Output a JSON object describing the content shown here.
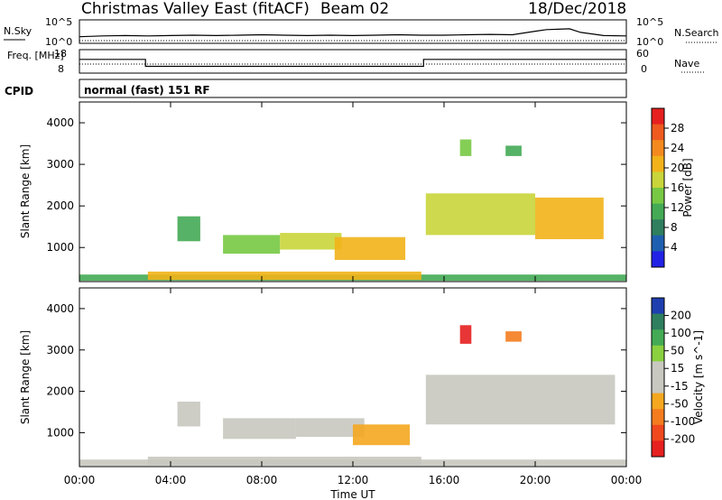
{
  "header": {
    "title": "Christmas Valley East (fitACF)",
    "beam": "Beam 02",
    "date": "18/Dec/2018"
  },
  "cpid_label": "CPID",
  "cpid_value": "normal (fast) 151 RF",
  "x_axis": {
    "label": "Time UT",
    "ticks": [
      "00:00",
      "04:00",
      "08:00",
      "12:00",
      "16:00",
      "20:00",
      "00:00"
    ],
    "range_hours": [
      0,
      24
    ]
  },
  "colors": {
    "power": [
      "#2222e6",
      "#1f5fb0",
      "#2f7f5f",
      "#44aa55",
      "#77c944",
      "#c9d53a",
      "#f2b21a",
      "#f48a1f",
      "#ee5a1f",
      "#e61f1f"
    ],
    "velocity": [
      "#e61f1f",
      "#f0481f",
      "#f47c1f",
      "#f4a71f",
      "#c8c8c0",
      "#c8c8c0",
      "#8ad040",
      "#44aa55",
      "#2f7f5f",
      "#1f3fb0"
    ]
  },
  "chart_data": [
    {
      "type": "line",
      "name": "noise_panel",
      "left_label": "N.Sky",
      "right_label": "N.Search",
      "left_ticks": [
        "10^5",
        "10^0"
      ],
      "right_ticks": [
        "10^5",
        "10^0"
      ],
      "series": [
        {
          "name": "N.Sky",
          "x": [
            0,
            1,
            2,
            3,
            4,
            5,
            6,
            7,
            8,
            9,
            10,
            11,
            12,
            13,
            14,
            15,
            16,
            17,
            18,
            19,
            20,
            20.5,
            21,
            21.5,
            22,
            23,
            24
          ],
          "y": [
            1.2,
            1.4,
            1.5,
            1.4,
            1.5,
            1.6,
            1.5,
            1.6,
            1.7,
            1.6,
            1.5,
            1.6,
            1.5,
            1.6,
            1.7,
            1.6,
            1.6,
            1.7,
            1.8,
            1.7,
            2.6,
            3.0,
            3.1,
            3.2,
            2.3,
            1.5,
            1.4
          ]
        }
      ]
    },
    {
      "type": "line",
      "name": "frequency_panel",
      "left_label": "Freq. [MHz]",
      "right_label": "Nave",
      "left_ticks": [
        "18",
        "8"
      ],
      "right_ticks": [
        "60",
        "0"
      ],
      "series": [
        {
          "name": "Freq.",
          "x": [
            0,
            2.9,
            2.9,
            15.1,
            15.1,
            24
          ],
          "y": [
            14,
            14,
            10.5,
            10.5,
            14,
            14
          ]
        }
      ]
    },
    {
      "type": "heatmap",
      "name": "power_panel",
      "ylabel": "Slant Range [km]",
      "yticks": [
        1000,
        2000,
        3000,
        4000
      ],
      "ylim": [
        180,
        4500
      ],
      "colorbar_label": "Power [dB]",
      "colorbar_ticks": [
        4,
        8,
        12,
        16,
        20,
        24,
        28
      ],
      "colorbar_range": [
        0,
        30
      ],
      "regions": [
        {
          "t0": 0.0,
          "t1": 24.0,
          "r0": 200,
          "r1": 350,
          "value": 10
        },
        {
          "t0": 3.0,
          "t1": 15.0,
          "r0": 220,
          "r1": 420,
          "value": 18
        },
        {
          "t0": 4.3,
          "t1": 5.3,
          "r0": 1150,
          "r1": 1750,
          "value": 9
        },
        {
          "t0": 6.3,
          "t1": 8.8,
          "r0": 850,
          "r1": 1300,
          "value": 14
        },
        {
          "t0": 8.8,
          "t1": 11.5,
          "r0": 950,
          "r1": 1350,
          "value": 16
        },
        {
          "t0": 11.2,
          "t1": 14.3,
          "r0": 700,
          "r1": 1250,
          "value": 20
        },
        {
          "t0": 15.2,
          "t1": 20.0,
          "r0": 1300,
          "r1": 2300,
          "value": 16
        },
        {
          "t0": 20.0,
          "t1": 23.0,
          "r0": 1200,
          "r1": 2200,
          "value": 18
        },
        {
          "t0": 16.7,
          "t1": 17.2,
          "r0": 3200,
          "r1": 3600,
          "value": 14
        },
        {
          "t0": 18.7,
          "t1": 19.4,
          "r0": 3200,
          "r1": 3450,
          "value": 10
        }
      ]
    },
    {
      "type": "heatmap",
      "name": "velocity_panel",
      "ylabel": "Slant Range [km]",
      "yticks": [
        1000,
        2000,
        3000,
        4000
      ],
      "ylim": [
        180,
        4500
      ],
      "colorbar_label": "Velocity [m s^-1]",
      "colorbar_ticks": [
        "200",
        "100",
        "50",
        "15",
        "-15",
        "-50",
        "-100",
        "-200"
      ],
      "colorbar_range": [
        -250,
        250
      ],
      "regions": [
        {
          "t0": 0.0,
          "t1": 24.0,
          "r0": 200,
          "r1": 350,
          "value": -40
        },
        {
          "t0": 3.0,
          "t1": 15.0,
          "r0": 220,
          "r1": 420,
          "value": 40
        },
        {
          "t0": 4.3,
          "t1": 5.3,
          "r0": 1150,
          "r1": 1750,
          "value": -20
        },
        {
          "t0": 6.3,
          "t1": 9.5,
          "r0": 850,
          "r1": 1350,
          "value": 40
        },
        {
          "t0": 9.5,
          "t1": 12.5,
          "r0": 900,
          "r1": 1350,
          "value": -50
        },
        {
          "t0": 12.0,
          "t1": 14.5,
          "r0": 700,
          "r1": 1200,
          "value": -80
        },
        {
          "t0": 15.2,
          "t1": 23.5,
          "r0": 1200,
          "r1": 2400,
          "value": 0
        },
        {
          "t0": 16.7,
          "t1": 17.2,
          "r0": 3150,
          "r1": 3600,
          "value": -220
        },
        {
          "t0": 18.7,
          "t1": 19.4,
          "r0": 3200,
          "r1": 3450,
          "value": -150
        }
      ]
    }
  ]
}
